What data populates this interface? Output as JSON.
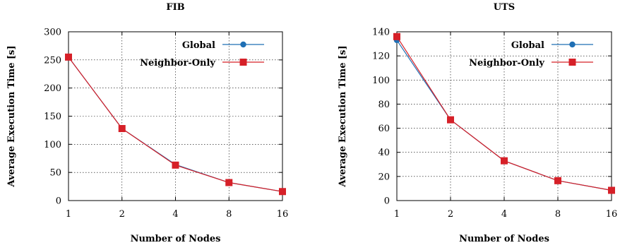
{
  "chart_data": [
    {
      "type": "line",
      "title": "FIB",
      "xlabel": "Number of Nodes",
      "ylabel": "Average Execution Time [s]",
      "x": [
        1,
        2,
        4,
        8,
        16
      ],
      "x_scale": "log2",
      "ylim": [
        0,
        300
      ],
      "yticks": [
        0,
        50,
        100,
        150,
        200,
        250,
        300
      ],
      "grid": true,
      "legend_position": "top-right",
      "series": [
        {
          "name": "Global",
          "values": [
            255,
            128,
            64,
            32,
            16
          ],
          "color": "#1f6fb4",
          "marker": "circle"
        },
        {
          "name": "Neighbor-Only",
          "values": [
            255,
            128,
            63,
            32,
            16
          ],
          "color": "#d62028",
          "marker": "square"
        }
      ]
    },
    {
      "type": "line",
      "title": "UTS",
      "xlabel": "Number of Nodes",
      "ylabel": "Average Execution Time [s]",
      "x": [
        1,
        2,
        4,
        8,
        16
      ],
      "x_scale": "log2",
      "ylim": [
        0,
        140
      ],
      "yticks": [
        0,
        20,
        40,
        60,
        80,
        100,
        120,
        140
      ],
      "grid": true,
      "legend_position": "top-right",
      "series": [
        {
          "name": "Global",
          "values": [
            133,
            67,
            33,
            16.5,
            8.5
          ],
          "color": "#1f6fb4",
          "marker": "circle"
        },
        {
          "name": "Neighbor-Only",
          "values": [
            136,
            67,
            33,
            16.5,
            8.5
          ],
          "color": "#d62028",
          "marker": "square"
        }
      ]
    }
  ]
}
